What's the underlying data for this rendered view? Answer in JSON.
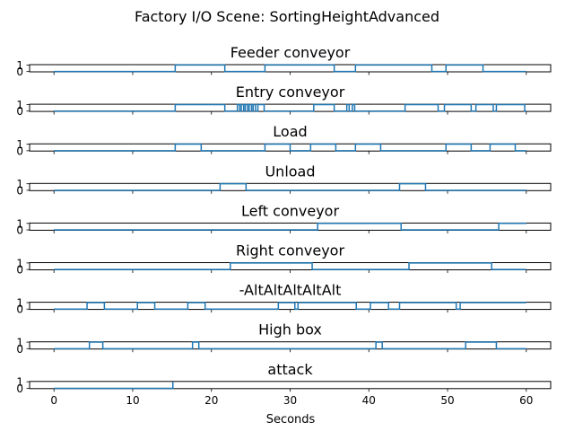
{
  "figure": {
    "title": "Factory I/O Scene: SortingHeightAdvanced"
  },
  "chart_data": {
    "type": "line",
    "step": "post",
    "xlabel": "Seconds",
    "xlim": [
      -3.1,
      63.1
    ],
    "ylim": [
      -0.05,
      1.05
    ],
    "xticks": [
      0,
      10,
      20,
      30,
      40,
      50,
      60
    ],
    "yticks": [
      0,
      1
    ],
    "line_color": "#1f77b4",
    "subplots": [
      {
        "title": "Feeder conveyor",
        "x": [
          0,
          15.4,
          21.7,
          26.8,
          35.6,
          38.3,
          48.0,
          49.8,
          54.5,
          60
        ],
        "y": [
          0,
          1,
          0,
          1,
          0,
          1,
          0,
          1,
          0,
          0
        ]
      },
      {
        "title": "Entry conveyor",
        "x": [
          0,
          15.4,
          21.7,
          23.3,
          23.6,
          23.8,
          24.1,
          24.3,
          24.6,
          24.8,
          25.1,
          25.3,
          25.6,
          25.9,
          26.7,
          33.0,
          35.6,
          37.2,
          37.5,
          37.9,
          38.2,
          44.6,
          48.8,
          49.6,
          53.0,
          53.6,
          55.8,
          56.2,
          59.8,
          60
        ],
        "y": [
          0,
          1,
          0,
          1,
          0,
          1,
          0,
          1,
          0,
          1,
          0,
          1,
          0,
          1,
          0,
          1,
          0,
          1,
          0,
          1,
          0,
          1,
          0,
          1,
          0,
          1,
          0,
          1,
          0,
          0
        ]
      },
      {
        "title": "Load",
        "x": [
          0,
          15.4,
          18.7,
          26.8,
          30.0,
          32.6,
          35.8,
          38.3,
          41.5,
          49.8,
          53.0,
          55.4,
          58.6,
          60
        ],
        "y": [
          0,
          1,
          0,
          1,
          0,
          1,
          0,
          1,
          0,
          1,
          0,
          1,
          0,
          0
        ]
      },
      {
        "title": "Unload",
        "x": [
          0,
          21.1,
          24.4,
          43.9,
          47.2,
          60
        ],
        "y": [
          0,
          1,
          0,
          1,
          0,
          0
        ]
      },
      {
        "title": "Left conveyor",
        "x": [
          0,
          33.5,
          44.1,
          56.5,
          60
        ],
        "y": [
          0,
          1,
          0,
          1,
          1
        ]
      },
      {
        "title": "Right conveyor",
        "x": [
          0,
          22.4,
          32.8,
          45.1,
          55.6,
          60
        ],
        "y": [
          0,
          1,
          0,
          1,
          0,
          0
        ]
      },
      {
        "title": "-AltAltAltAltAlt",
        "x": [
          0,
          4.2,
          6.4,
          10.6,
          12.8,
          17.0,
          19.2,
          28.5,
          30.6,
          31.0,
          38.4,
          40.2,
          42.5,
          43.9,
          51.1,
          51.6,
          60
        ],
        "y": [
          0,
          1,
          0,
          1,
          0,
          1,
          0,
          1,
          0,
          1,
          0,
          1,
          0,
          1,
          0,
          1,
          1
        ]
      },
      {
        "title": "High box",
        "x": [
          0,
          4.5,
          6.2,
          17.6,
          18.4,
          40.9,
          41.7,
          52.3,
          56.2,
          60
        ],
        "y": [
          0,
          1,
          0,
          1,
          0,
          1,
          0,
          1,
          0,
          0
        ]
      },
      {
        "title": "attack",
        "x": [
          0,
          15.1
        ],
        "y": [
          0,
          1
        ]
      }
    ]
  }
}
